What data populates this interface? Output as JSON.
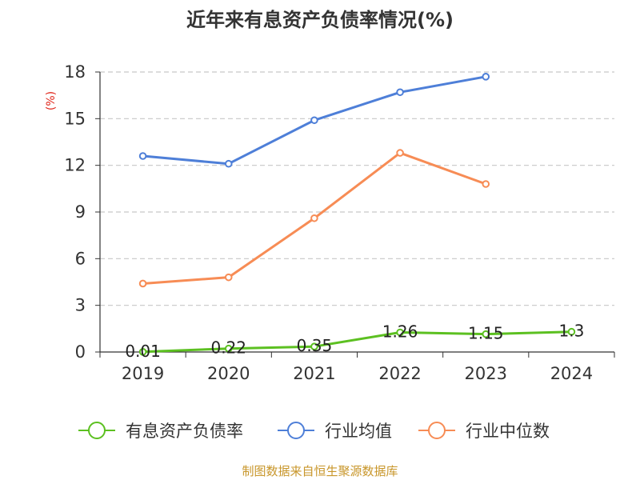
{
  "chart_data": {
    "type": "line",
    "title": "近年来有息资产负债率情况(%)",
    "ylabel": "(%)",
    "xlabel": "",
    "categories": [
      "2019",
      "2020",
      "2021",
      "2022",
      "2023",
      "2024"
    ],
    "yticks": [
      "0",
      "3",
      "6",
      "9",
      "12",
      "15",
      "18"
    ],
    "ylim": [
      0,
      18
    ],
    "grid": true,
    "legend_position": "bottom",
    "series": [
      {
        "name": "有息资产负债率",
        "color": "#5cc021",
        "values": [
          0.01,
          0.22,
          0.35,
          1.26,
          1.15,
          1.3
        ],
        "labels": [
          "0.01",
          "0.22",
          "0.35",
          "1.26",
          "1.15",
          "1.3"
        ]
      },
      {
        "name": "行业均值",
        "color": "#4e7fd8",
        "values": [
          12.6,
          12.1,
          14.9,
          16.7,
          17.7,
          null
        ]
      },
      {
        "name": "行业中位数",
        "color": "#f78c55",
        "values": [
          4.4,
          4.8,
          8.6,
          12.8,
          10.8,
          null
        ]
      }
    ],
    "source": "制图数据来自恒生聚源数据库"
  }
}
